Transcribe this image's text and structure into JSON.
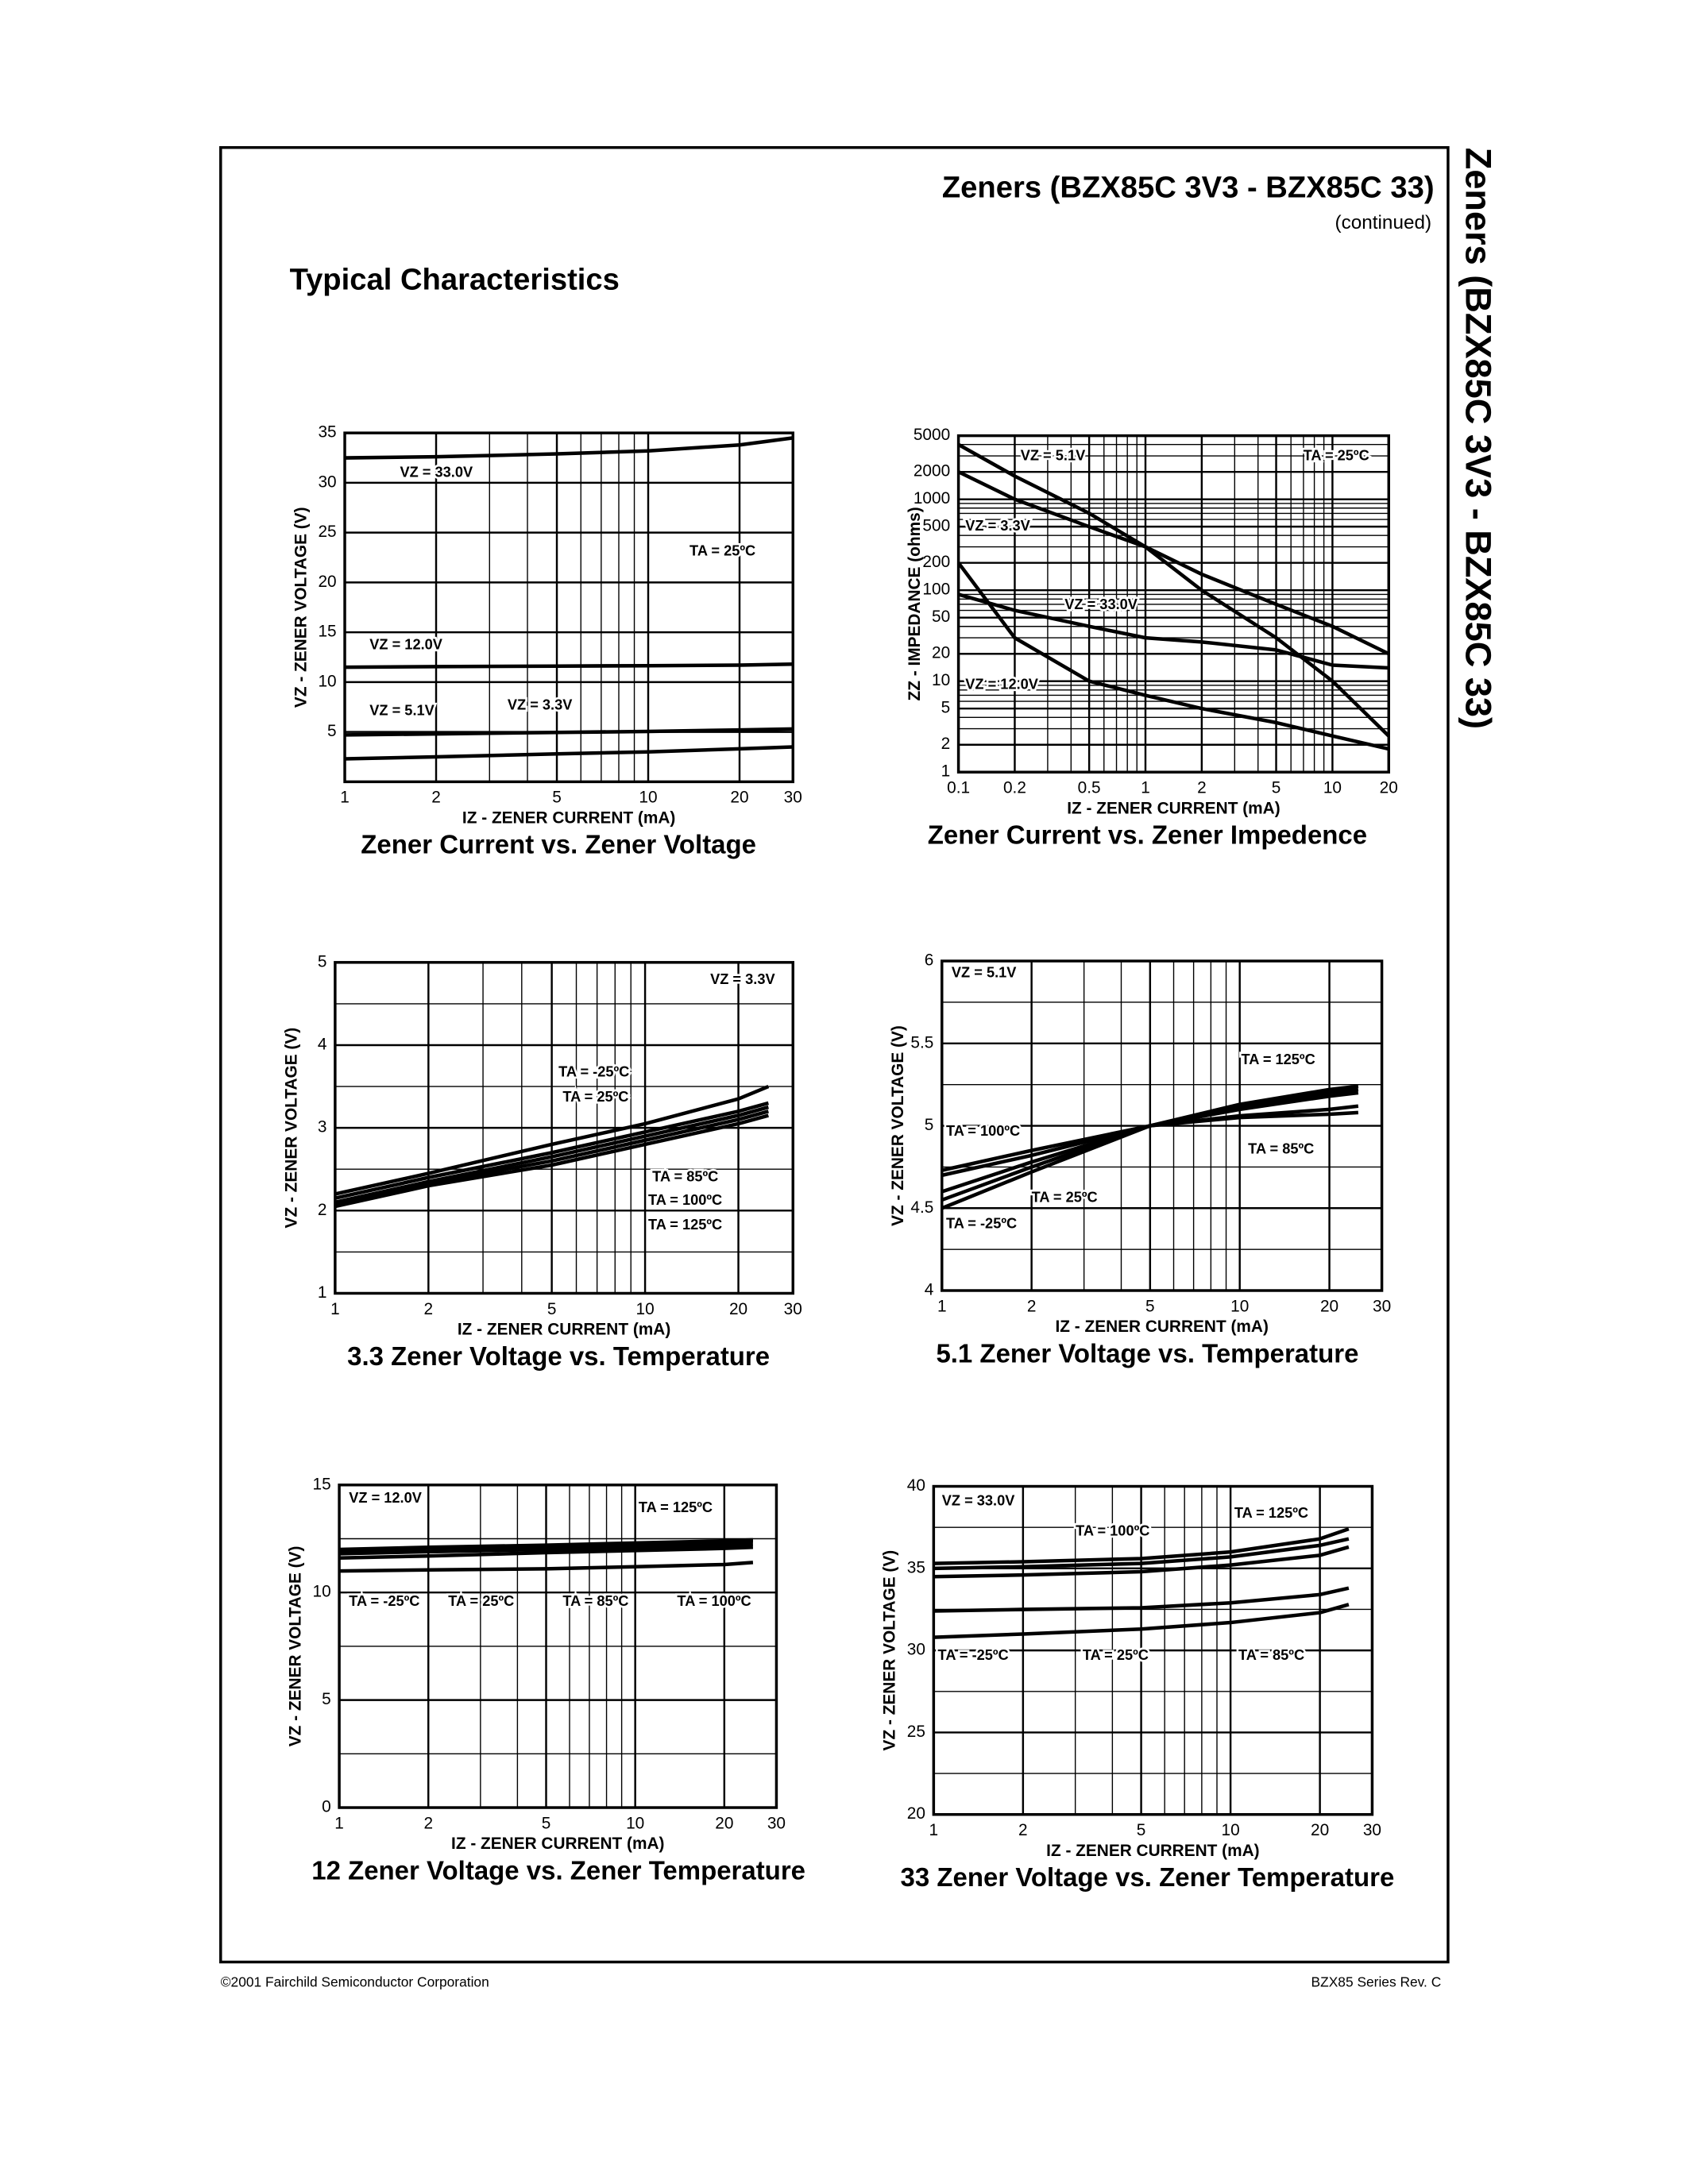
{
  "header": {
    "title": "Zeners (BZX85C 3V3 - BZX85C 33)",
    "subtitle": "(continued)",
    "section": "Typical Characteristics",
    "side_title": "Zeners (BZX85C 3V3 - BZX85C 33)"
  },
  "footer": {
    "left": "©2001 Fairchild Semiconductor Corporation",
    "right": "BZX85 Series Rev. C"
  },
  "chart_data": [
    {
      "type": "line",
      "title": "Zener Current vs. Zener Voltage",
      "xlabel": "IZ - ZENER CURRENT (mA)",
      "ylabel": "VZ - ZENER VOLTAGE (V)",
      "xscale": "log",
      "yscale": "linear",
      "grid": true,
      "xlim": [
        1,
        30
      ],
      "xticks": [
        1,
        2,
        5,
        10,
        20,
        30
      ],
      "xminor": [
        3,
        4,
        6,
        7,
        8,
        9
      ],
      "ylim": [
        0,
        35
      ],
      "yticks": [
        5,
        10,
        15,
        20,
        25,
        30,
        35
      ],
      "series": [
        {
          "name": "VZ = 33.0V",
          "color": "#000000",
          "x": [
            1,
            2,
            5,
            10,
            20,
            30
          ],
          "values": [
            32.5,
            32.6,
            32.9,
            33.2,
            33.8,
            34.5
          ]
        },
        {
          "name": "VZ = 12.0V",
          "color": "#000000",
          "x": [
            1,
            2,
            5,
            10,
            20,
            30
          ],
          "values": [
            11.5,
            11.55,
            11.6,
            11.65,
            11.7,
            11.8
          ]
        },
        {
          "name": "VZ = 5.1V",
          "color": "#000000",
          "x": [
            1,
            2,
            5,
            10,
            20,
            30
          ],
          "values": [
            4.7,
            4.8,
            4.95,
            5.05,
            5.2,
            5.3
          ]
        },
        {
          "name": "VZ = 3.3V",
          "color": "#000000",
          "x": [
            1,
            2,
            5,
            10,
            20,
            30
          ],
          "values": [
            2.3,
            2.5,
            2.8,
            3.0,
            3.3,
            3.5
          ]
        }
      ],
      "annotations": [
        "TA = 25ºC"
      ]
    },
    {
      "type": "line",
      "title": "Zener Current vs. Zener Impedence",
      "xlabel": "IZ - ZENER CURRENT (mA)",
      "ylabel": "ZZ - IMPEDANCE (ohms)",
      "xscale": "log",
      "yscale": "log",
      "grid": true,
      "xlim": [
        0.1,
        20
      ],
      "xticks": [
        0.1,
        0.2,
        0.5,
        1,
        2,
        5,
        10,
        20
      ],
      "xminor": [
        0.3,
        0.4,
        0.6,
        0.7,
        0.8,
        0.9,
        3,
        4,
        6,
        7,
        8,
        9
      ],
      "ylim": [
        1,
        5000
      ],
      "yticks": [
        1,
        2,
        5,
        10,
        20,
        50,
        100,
        200,
        500,
        1000,
        2000,
        5000
      ],
      "yminor": [
        3,
        4,
        6,
        7,
        8,
        9,
        30,
        40,
        60,
        70,
        80,
        90,
        300,
        400,
        600,
        700,
        800,
        900,
        3000,
        4000
      ],
      "series": [
        {
          "name": "VZ = 5.1V",
          "color": "#000000",
          "x": [
            0.1,
            0.2,
            0.5,
            1,
            2,
            5,
            10,
            20
          ],
          "values": [
            4000,
            1800,
            700,
            300,
            150,
            70,
            40,
            20
          ]
        },
        {
          "name": "VZ = 3.3V",
          "color": "#000000",
          "x": [
            0.1,
            0.2,
            0.5,
            1,
            2,
            5,
            10,
            20
          ],
          "values": [
            2000,
            1000,
            500,
            300,
            100,
            30,
            10,
            2.5
          ]
        },
        {
          "name": "VZ = 33.0V",
          "color": "#000000",
          "x": [
            0.1,
            0.2,
            0.5,
            1,
            2,
            5,
            10,
            20
          ],
          "values": [
            90,
            60,
            40,
            30,
            27,
            22,
            15,
            14
          ]
        },
        {
          "name": "VZ = 12.0V",
          "color": "#000000",
          "x": [
            0.1,
            0.2,
            0.5,
            1,
            2,
            5,
            10,
            20
          ],
          "values": [
            200,
            30,
            10,
            7,
            5,
            3.5,
            2.5,
            1.8
          ]
        }
      ],
      "annotations": [
        "TA = 25ºC"
      ]
    },
    {
      "type": "line",
      "title": "3.3 Zener Voltage vs. Temperature",
      "xlabel": "IZ - ZENER CURRENT (mA)",
      "ylabel": "VZ - ZENER VOLTAGE (V)",
      "xscale": "log",
      "yscale": "linear",
      "grid": true,
      "xlim": [
        1,
        30
      ],
      "xticks": [
        1,
        2,
        5,
        10,
        20,
        30
      ],
      "xminor": [
        3,
        4,
        6,
        7,
        8,
        9
      ],
      "ylim": [
        1,
        5
      ],
      "yticks": [
        1,
        2,
        3,
        4,
        5
      ],
      "yminor": [
        1.5,
        2.5,
        3.5,
        4.5
      ],
      "series": [
        {
          "name": "TA = -25ºC",
          "color": "#000000",
          "x": [
            1,
            2,
            5,
            10,
            20,
            25
          ],
          "values": [
            2.2,
            2.45,
            2.8,
            3.05,
            3.35,
            3.5
          ]
        },
        {
          "name": "TA = 25ºC",
          "color": "#000000",
          "x": [
            1,
            2,
            5,
            10,
            20,
            25
          ],
          "values": [
            2.15,
            2.4,
            2.7,
            2.95,
            3.2,
            3.3
          ]
        },
        {
          "name": "TA = 85ºC",
          "color": "#000000",
          "x": [
            1,
            2,
            5,
            10,
            20,
            25
          ],
          "values": [
            2.1,
            2.35,
            2.65,
            2.9,
            3.15,
            3.25
          ]
        },
        {
          "name": "TA = 100ºC",
          "color": "#000000",
          "x": [
            1,
            2,
            5,
            10,
            20,
            25
          ],
          "values": [
            2.08,
            2.33,
            2.6,
            2.85,
            3.1,
            3.2
          ]
        },
        {
          "name": "TA = 125ºC",
          "color": "#000000",
          "x": [
            1,
            2,
            5,
            10,
            20,
            25
          ],
          "values": [
            2.05,
            2.3,
            2.55,
            2.8,
            3.05,
            3.15
          ]
        }
      ],
      "annotations": [
        "VZ = 3.3V"
      ]
    },
    {
      "type": "line",
      "title": "5.1 Zener Voltage vs. Temperature",
      "xlabel": "IZ - ZENER CURRENT (mA)",
      "ylabel": "VZ - ZENER VOLTAGE (V)",
      "xscale": "log",
      "yscale": "linear",
      "grid": true,
      "xlim": [
        1,
        30
      ],
      "xticks": [
        1,
        2,
        5,
        10,
        20,
        30
      ],
      "xminor": [
        3,
        4,
        6,
        7,
        8,
        9
      ],
      "ylim": [
        4,
        6
      ],
      "yticks": [
        4,
        4.5,
        5,
        5.5,
        6
      ],
      "yminor": [
        4.25,
        4.75,
        5.25,
        5.75
      ],
      "series": [
        {
          "name": "TA = -25ºC",
          "color": "#000000",
          "x": [
            1,
            2,
            5,
            10,
            20,
            25
          ],
          "values": [
            4.55,
            4.75,
            5.0,
            5.12,
            5.2,
            5.22
          ]
        },
        {
          "name": "TA = 25ºC",
          "color": "#000000",
          "x": [
            1,
            2,
            5,
            10,
            20,
            25
          ],
          "values": [
            4.6,
            4.78,
            5.0,
            5.1,
            5.18,
            5.2
          ]
        },
        {
          "name": "TA = 85ºC",
          "color": "#000000",
          "x": [
            1,
            2,
            5,
            10,
            20,
            25
          ],
          "values": [
            4.7,
            4.82,
            5.0,
            5.06,
            5.1,
            5.12
          ]
        },
        {
          "name": "TA = 100ºC",
          "color": "#000000",
          "x": [
            1,
            2,
            5,
            10,
            20,
            25
          ],
          "values": [
            4.73,
            4.85,
            5.0,
            5.05,
            5.07,
            5.08
          ]
        },
        {
          "name": "TA = 125ºC",
          "color": "#000000",
          "x": [
            1,
            2,
            5,
            10,
            20,
            25
          ],
          "values": [
            4.5,
            4.72,
            5.0,
            5.13,
            5.22,
            5.24
          ]
        }
      ],
      "annotations": [
        "VZ = 5.1V"
      ]
    },
    {
      "type": "line",
      "title": "12 Zener Voltage vs. Zener Temperature",
      "xlabel": "IZ - ZENER CURRENT (mA)",
      "ylabel": "VZ - ZENER VOLTAGE (V)",
      "xscale": "log",
      "yscale": "linear",
      "grid": true,
      "xlim": [
        1,
        30
      ],
      "xticks": [
        1,
        2,
        5,
        10,
        20,
        30
      ],
      "xminor": [
        3,
        4,
        6,
        7,
        8,
        9
      ],
      "ylim": [
        0,
        15
      ],
      "yticks": [
        0,
        5,
        10,
        15
      ],
      "yminor": [
        2.5,
        7.5,
        12.5
      ],
      "series": [
        {
          "name": "TA = -25ºC",
          "color": "#000000",
          "x": [
            1,
            2,
            5,
            10,
            20,
            25
          ],
          "values": [
            11.6,
            11.7,
            11.85,
            11.95,
            12.05,
            12.1
          ]
        },
        {
          "name": "TA = 25ºC",
          "color": "#000000",
          "x": [
            1,
            2,
            5,
            10,
            20,
            25
          ],
          "values": [
            11.8,
            11.9,
            12.0,
            12.1,
            12.2,
            12.25
          ]
        },
        {
          "name": "TA = 85ºC",
          "color": "#000000",
          "x": [
            1,
            2,
            5,
            10,
            20,
            25
          ],
          "values": [
            11.95,
            12.05,
            12.15,
            12.25,
            12.35,
            12.4
          ]
        },
        {
          "name": "TA = 100ºC",
          "color": "#000000",
          "x": [
            1,
            2,
            5,
            10,
            20,
            25
          ],
          "values": [
            11.0,
            11.05,
            11.1,
            11.2,
            11.3,
            11.4
          ]
        },
        {
          "name": "TA = 125ºC",
          "color": "#000000",
          "x": [
            1,
            2,
            5,
            10,
            20,
            25
          ],
          "values": [
            12.0,
            12.1,
            12.2,
            12.3,
            12.4,
            12.45
          ]
        }
      ],
      "annotations": [
        "VZ = 12.0V"
      ]
    },
    {
      "type": "line",
      "title": "33 Zener Voltage vs. Zener Temperature",
      "xlabel": "IZ - ZENER CURRENT (mA)",
      "ylabel": "VZ - ZENER VOLTAGE (V)",
      "xscale": "log",
      "yscale": "linear",
      "grid": true,
      "xlim": [
        1,
        30
      ],
      "xticks": [
        1,
        2,
        5,
        10,
        20,
        30
      ],
      "xminor": [
        3,
        4,
        6,
        7,
        8,
        9
      ],
      "ylim": [
        20,
        40
      ],
      "yticks": [
        20,
        25,
        30,
        35,
        40
      ],
      "yminor": [
        22.5,
        27.5,
        32.5,
        37.5
      ],
      "series": [
        {
          "name": "TA = -25ºC",
          "color": "#000000",
          "x": [
            1,
            2,
            5,
            10,
            20,
            25
          ],
          "values": [
            30.8,
            31,
            31.3,
            31.7,
            32.3,
            32.8
          ]
        },
        {
          "name": "TA = 25ºC",
          "color": "#000000",
          "x": [
            1,
            2,
            5,
            10,
            20,
            25
          ],
          "values": [
            32.4,
            32.5,
            32.6,
            32.9,
            33.4,
            33.8
          ]
        },
        {
          "name": "TA = 85ºC",
          "color": "#000000",
          "x": [
            1,
            2,
            5,
            10,
            20,
            25
          ],
          "values": [
            34.5,
            34.6,
            34.8,
            35.2,
            35.8,
            36.3
          ]
        },
        {
          "name": "TA = 100ºC",
          "color": "#000000",
          "x": [
            1,
            2,
            5,
            10,
            20,
            25
          ],
          "values": [
            35,
            35.1,
            35.3,
            35.7,
            36.4,
            36.8
          ]
        },
        {
          "name": "TA = 125ºC",
          "color": "#000000",
          "x": [
            1,
            2,
            5,
            10,
            20,
            25
          ],
          "values": [
            35.3,
            35.4,
            35.6,
            36,
            36.8,
            37.4
          ]
        }
      ],
      "annotations": [
        "VZ = 33.0V"
      ]
    }
  ]
}
